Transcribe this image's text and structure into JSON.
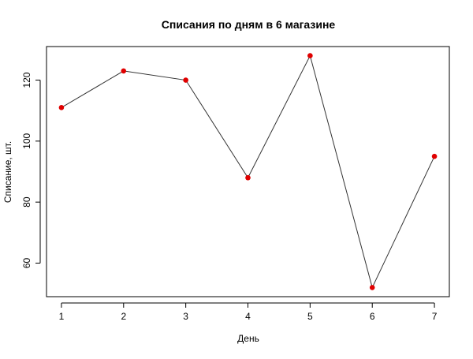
{
  "chart_data": {
    "type": "line",
    "title": "Списания по дням в 6 магазине",
    "xlabel": "День",
    "ylabel": "Списание, шт.",
    "x": [
      1,
      2,
      3,
      4,
      5,
      6,
      7
    ],
    "series": [
      {
        "values": [
          111,
          123,
          120,
          88,
          128,
          52,
          95
        ]
      }
    ],
    "xlim": [
      0.76,
      7.24
    ],
    "ylim": [
      49,
      131
    ],
    "xticks": [
      "1",
      "2",
      "3",
      "4",
      "5",
      "6",
      "7"
    ],
    "yticks": [
      "60",
      "80",
      "100",
      "120"
    ],
    "grid": false,
    "legend": "none"
  },
  "colors": {
    "line": "#333333",
    "marker": "#e00000",
    "frame": "#000000"
  }
}
